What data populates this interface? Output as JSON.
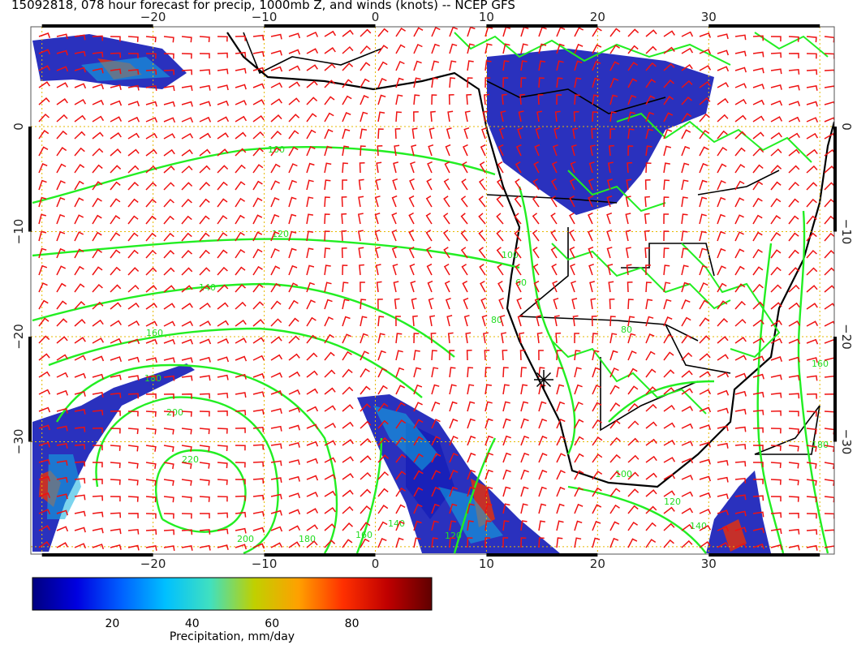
{
  "title": "15092818, 078 hour forecast for precip, 1000mb Z, and winds (knots) -- NCEP GFS",
  "map": {
    "lon_ticks": [
      {
        "lon": -20,
        "label": "−20"
      },
      {
        "lon": -10,
        "label": "−10"
      },
      {
        "lon": 0,
        "label": "0"
      },
      {
        "lon": 10,
        "label": "10"
      },
      {
        "lon": 20,
        "label": "20"
      },
      {
        "lon": 30,
        "label": "30"
      }
    ],
    "lat_ticks": [
      {
        "lat": 0,
        "label": "0"
      },
      {
        "lat": -10,
        "label": "−10"
      },
      {
        "lat": -20,
        "label": "−20"
      },
      {
        "lat": -30,
        "label": "−30"
      }
    ],
    "contour_labels": [
      "100",
      "120",
      "140",
      "160",
      "180",
      "200",
      "220",
      "200",
      "180",
      "160",
      "140",
      "120",
      "100",
      "80",
      "60",
      "80",
      "100",
      "120",
      "140",
      "160",
      "180"
    ],
    "colors": {
      "contour": "#22ee22",
      "barb": "#ee1111",
      "coast": "#000000",
      "grid": "#e6b800"
    }
  },
  "colorbar": {
    "ticks": [
      "20",
      "40",
      "60",
      "80"
    ],
    "tick_values": [
      20,
      40,
      60,
      80
    ],
    "min": 0,
    "max": 100,
    "label": "Precipitation, mm/day",
    "colors": [
      "#000080",
      "#0000e0",
      "#0060ff",
      "#00c0ff",
      "#40e0c0",
      "#c0d000",
      "#ffa000",
      "#ff3000",
      "#c00000",
      "#600000"
    ]
  }
}
